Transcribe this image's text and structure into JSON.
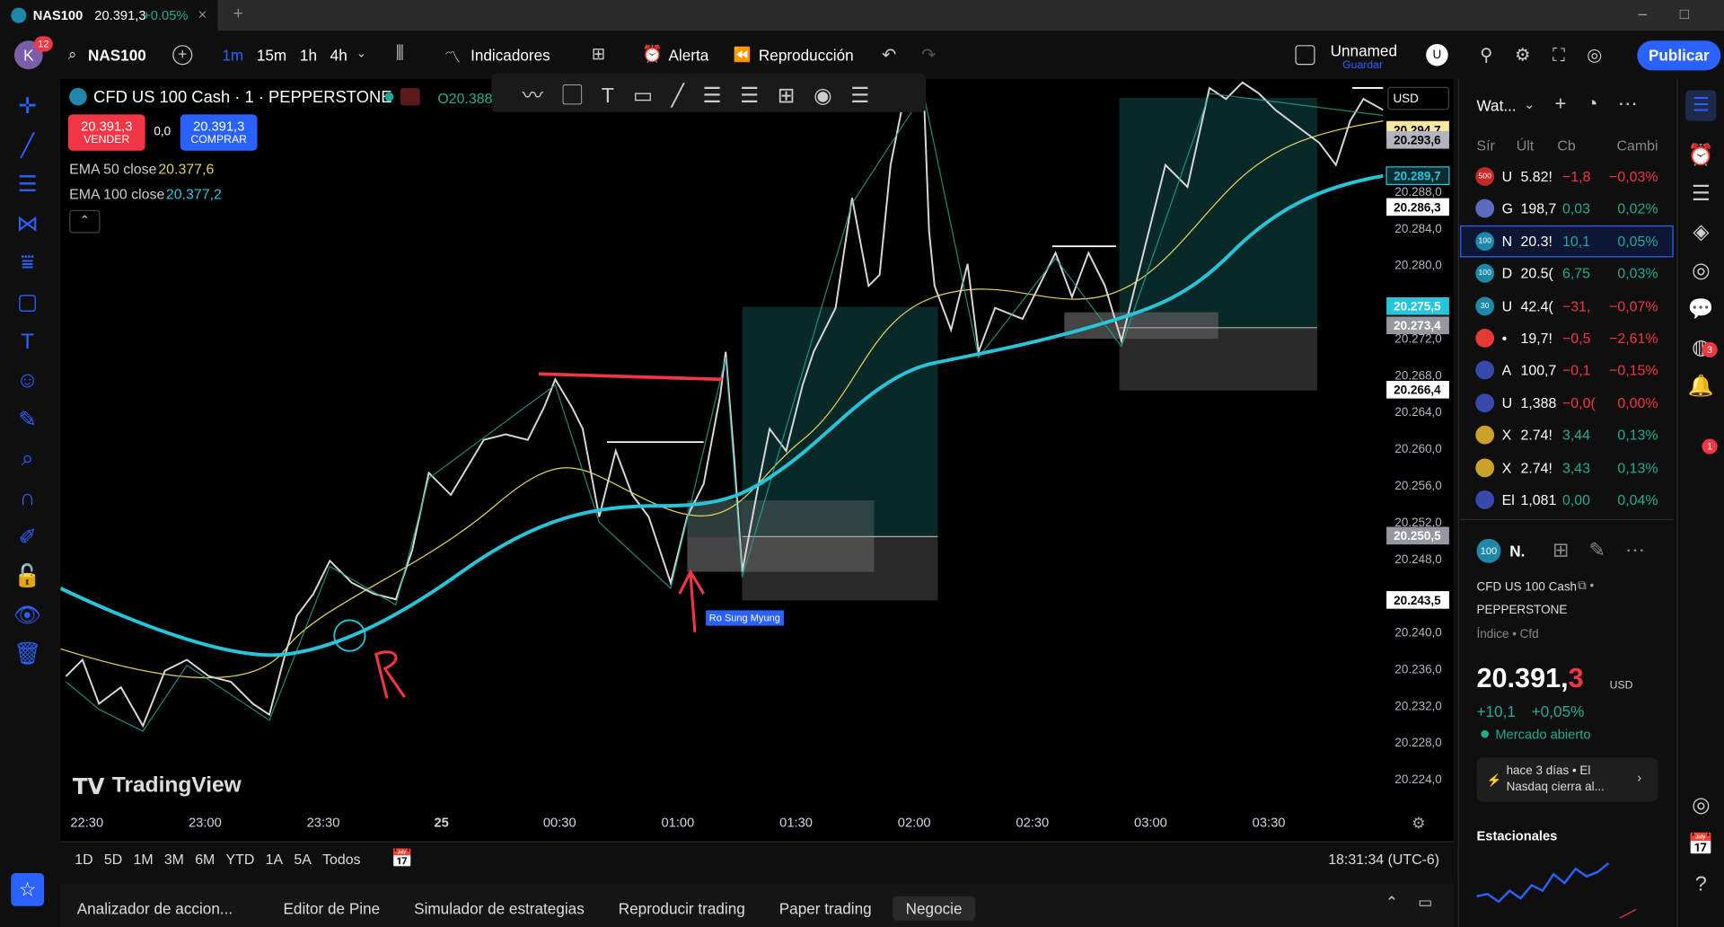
{
  "tab": {
    "title": "NAS100",
    "price": "20.391,3",
    "change": "+0.05%"
  },
  "toolbar": {
    "avatar": "K",
    "badge": "12",
    "symbol": "NAS100",
    "intervals": [
      "1m",
      "15m",
      "1h",
      "4h"
    ],
    "indicators": "Indicadores",
    "alert": "Alerta",
    "replay": "Reproducción",
    "layout_name": "Unnamed",
    "layout_status": "Guardar",
    "user": "U",
    "publish": "Publicar"
  },
  "legend": {
    "symbol": "CFD US 100 Cash · 1 · PEPPERSTONE",
    "ohlc": "O20.388",
    "sell_price": "20.391,3",
    "sell": "VENDER",
    "spread": "0,0",
    "buy_price": "20.391,3",
    "buy": "COMPRAR",
    "ema50_label": "EMA 50 close",
    "ema50_value": "20.377,6",
    "ema100_label": "EMA 100 close",
    "ema100_value": "20.377,2"
  },
  "price_axis": {
    "currency": "USD",
    "ticks": [
      "20.288,0",
      "20.284,0",
      "20.280,0",
      "20.272,0",
      "20.268,0",
      "20.264,0",
      "20.260,0",
      "20.256,0",
      "20.252,0",
      "20.248,0",
      "20.240,0",
      "20.236,0",
      "20.232,0",
      "20.228,0",
      "20.224,0"
    ],
    "labels": [
      {
        "text": "20.294,7",
        "bg": "#f7e8a0",
        "fg": "#000000"
      },
      {
        "text": "20.293,6",
        "bg": "#b2b5be",
        "fg": "#000000"
      },
      {
        "text": "20.289,7",
        "bg": "#0c2b33",
        "fg": "#26c6da"
      },
      {
        "text": "20.286,3",
        "bg": "#ffffff",
        "fg": "#000000"
      },
      {
        "text": "20.275,5",
        "bg": "#26c6da",
        "fg": "#ffffff"
      },
      {
        "text": "20.273,4",
        "bg": "#9598a1",
        "fg": "#ffffff"
      },
      {
        "text": "20.266,4",
        "bg": "#ffffff",
        "fg": "#000000"
      },
      {
        "text": "20.250,5",
        "bg": "#9598a1",
        "fg": "#ffffff"
      },
      {
        "text": "20.243,5",
        "bg": "#ffffff",
        "fg": "#000000"
      }
    ]
  },
  "time_axis": [
    "22:30",
    "23:00",
    "23:30",
    "25",
    "00:30",
    "01:00",
    "01:30",
    "02:00",
    "02:30",
    "03:00",
    "03:30"
  ],
  "annotation": "Ro Sung Myung",
  "watermark": "TradingView",
  "ranges": [
    "1D",
    "5D",
    "1M",
    "3M",
    "6M",
    "YTD",
    "1A",
    "5A",
    "Todos"
  ],
  "clock": "18:31:34 (UTC-6)",
  "bottom_tabs": [
    "Analizador de accion...",
    "Editor de Pine",
    "Simulador de estrategias",
    "Reproducir trading",
    "Paper trading",
    "Negocie"
  ],
  "watchlist": {
    "title": "Wat...",
    "columns": [
      "Sír",
      "Últ",
      "Cb",
      "Cambi"
    ],
    "rows": [
      {
        "icon": "500",
        "icon_color": "#c62828",
        "symbol": "U",
        "last": "5.82!",
        "change": "−1,8",
        "percent": "−0,03%",
        "color": "#f23645"
      },
      {
        "icon_color": "#5c6bc0",
        "symbol": "G",
        "last": "198,7",
        "change": "0,03",
        "percent": "0,02%",
        "color": "#22ab94"
      },
      {
        "icon": "100",
        "icon_color": "#1e88a8",
        "symbol": "N",
        "last": "20.3!",
        "change": "10,1",
        "percent": "0,05%",
        "color": "#22ab94"
      },
      {
        "icon": "100",
        "icon_color": "#1e88a8",
        "symbol": "D",
        "last": "20.5(",
        "change": "6,75",
        "percent": "0,03%",
        "color": "#22ab94"
      },
      {
        "icon": "30",
        "icon_color": "#1e88a8",
        "symbol": "U",
        "last": "42.4(",
        "change": "−31,",
        "percent": "−0,07%",
        "color": "#f23645"
      },
      {
        "icon_color": "#e53935",
        "symbol": "•",
        "last": "19,7!",
        "change": "−0,5",
        "percent": "−2,61%",
        "color": "#f23645"
      },
      {
        "icon_color": "#3949ab",
        "symbol": "A",
        "last": "100,7",
        "change": "−0,1",
        "percent": "−0,15%",
        "color": "#f23645"
      },
      {
        "icon_color": "#3949ab",
        "symbol": "U",
        "last": "1,388",
        "change": "−0,0(",
        "percent": "0,00%",
        "color": "#f23645"
      },
      {
        "icon_color": "#c9a227",
        "symbol": "X",
        "last": "2.74!",
        "change": "3,44",
        "percent": "0,13%",
        "color": "#22ab94"
      },
      {
        "icon_color": "#c9a227",
        "symbol": "X",
        "last": "2.74!",
        "change": "3,43",
        "percent": "0,13%",
        "color": "#22ab94"
      },
      {
        "icon_color": "#3949ab",
        "symbol": "El",
        "last": "1,081",
        "change": "0,00",
        "percent": "0,04%",
        "color": "#22ab94"
      }
    ]
  },
  "details": {
    "icon": "100",
    "symbol": "N.",
    "name": "CFD US 100 Cash",
    "exchange": "PEPPERSTONE",
    "kind": "Índice • Cfd",
    "price_main": "20.391,",
    "price_last": "3",
    "currency": "USD",
    "change": "+10,1",
    "percent": "+0,05%",
    "status": "Mercado abierto",
    "news": "hace 3 días • El Nasdaq cierra al...",
    "seasonals": "Estacionales"
  },
  "badges": {
    "chat": "3",
    "alerts": "1"
  }
}
